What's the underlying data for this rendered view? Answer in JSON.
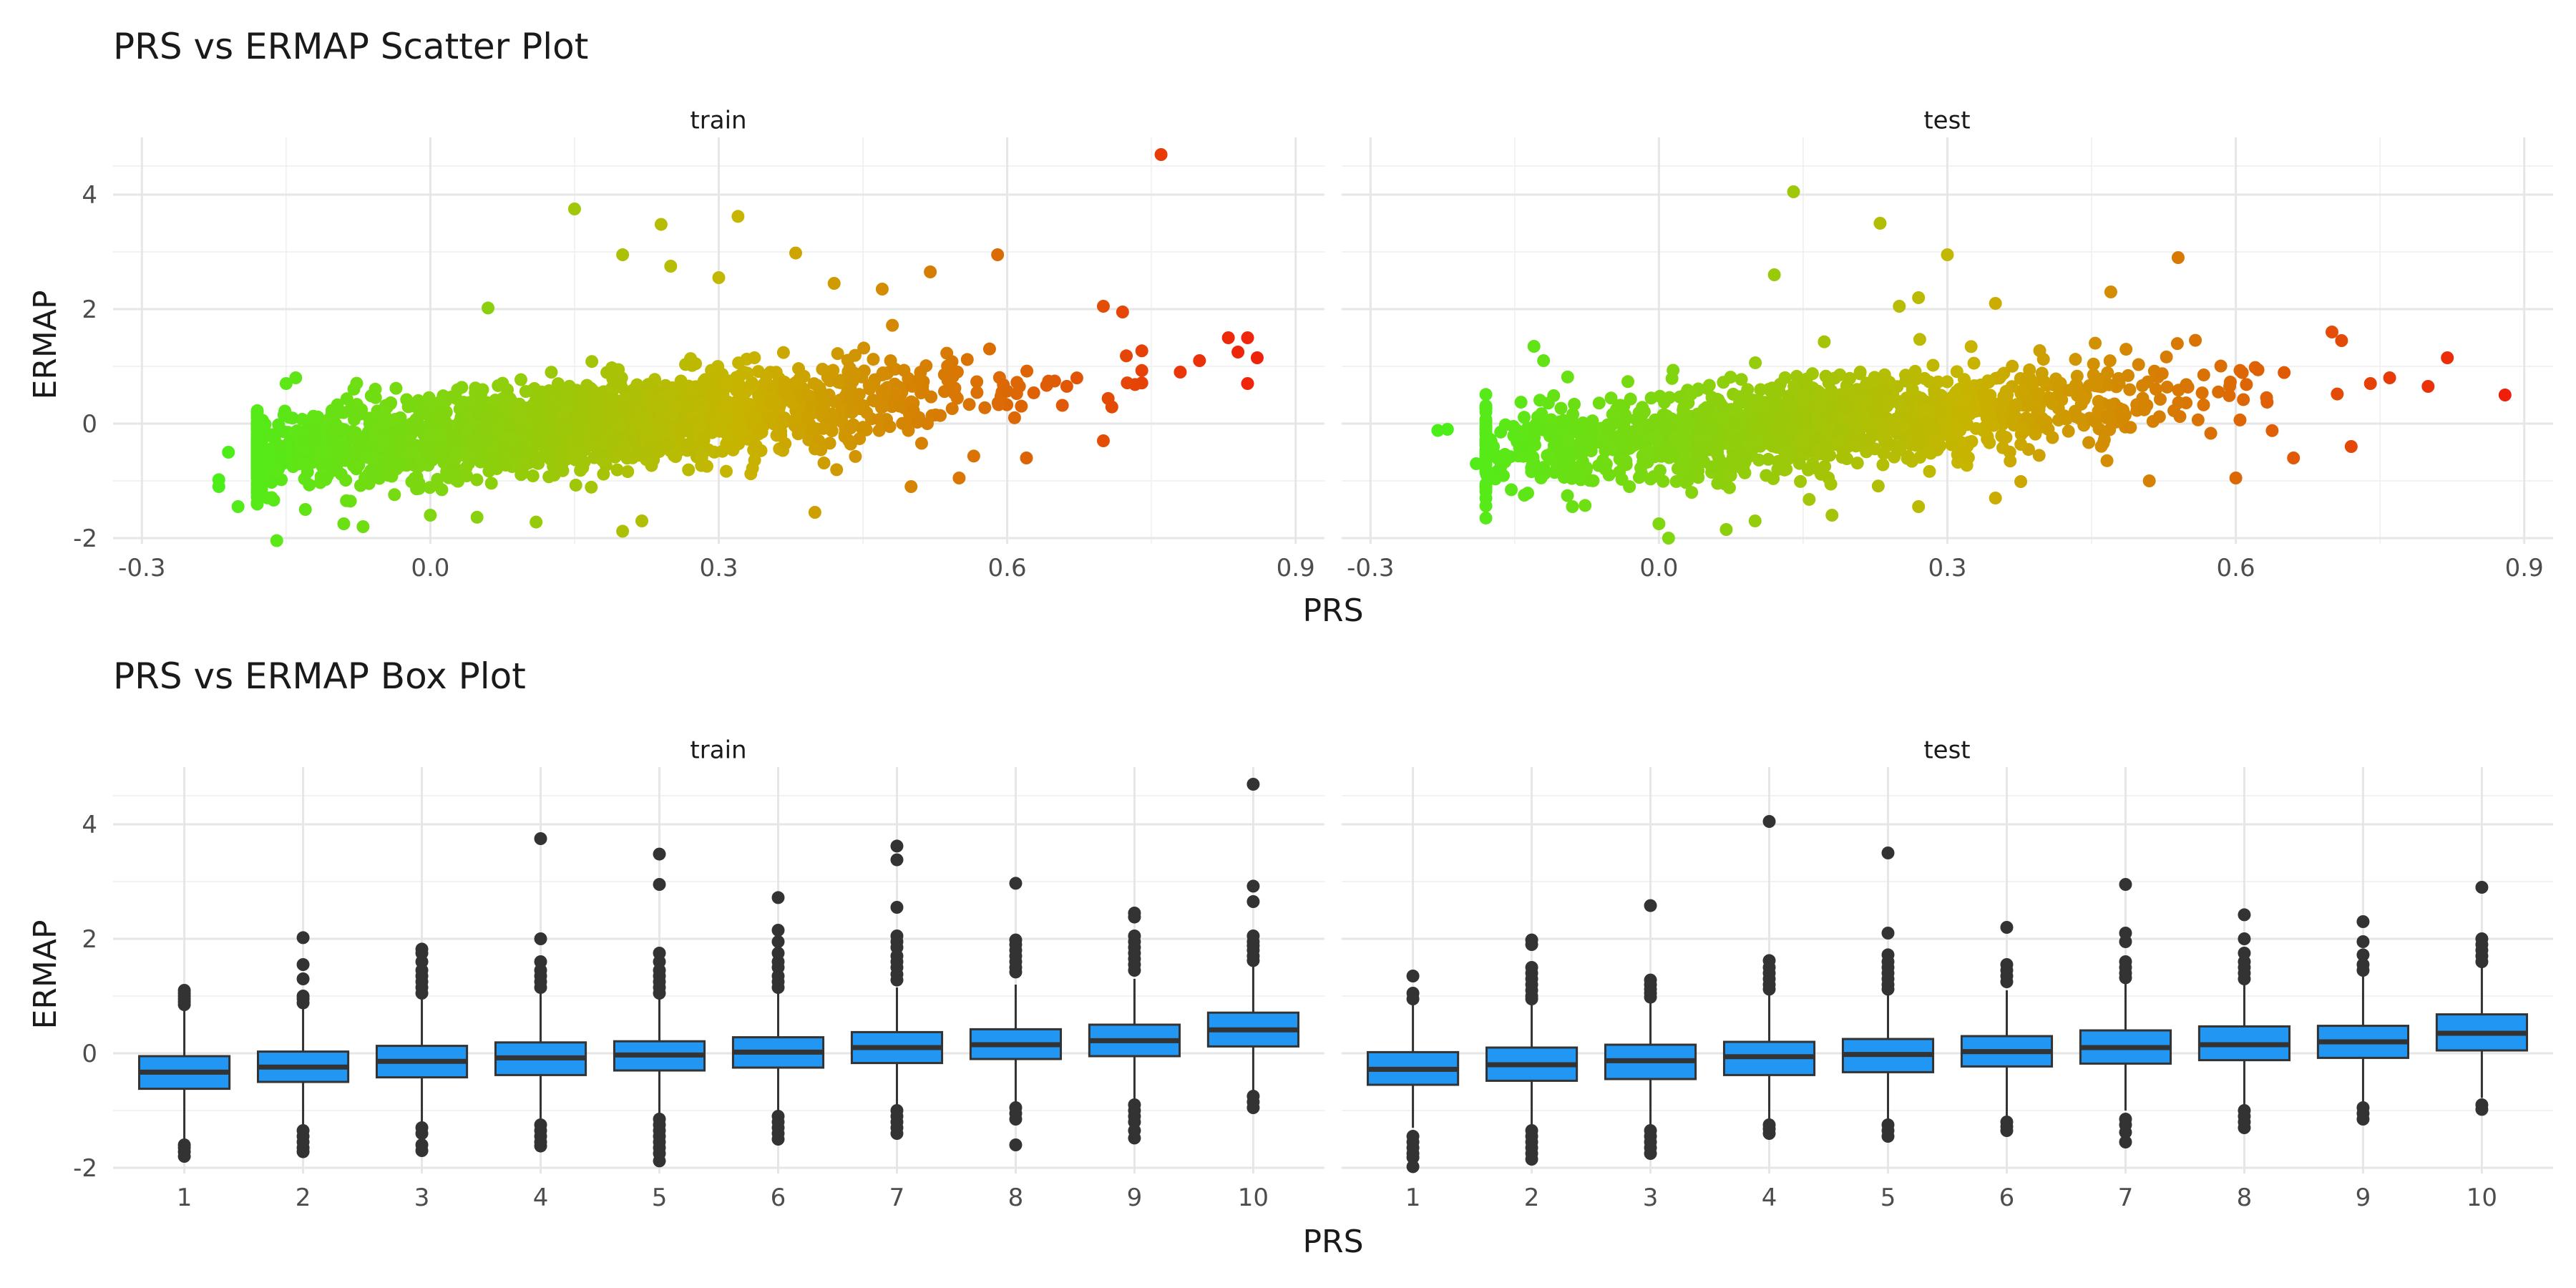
{
  "chart_data": [
    {
      "type": "scatter",
      "title": "PRS vs ERMAP Scatter Plot",
      "xlabel": "PRS",
      "ylabel": "ERMAP",
      "facets": [
        "train",
        "test"
      ],
      "xlim": [
        -0.33,
        0.93
      ],
      "ylim": [
        -2.1,
        5.0
      ],
      "xticks": [
        -0.3,
        0.0,
        0.3,
        0.6,
        0.9
      ],
      "xtick_labels": [
        "-0.3",
        "0.0",
        "0.3",
        "0.6",
        "0.9"
      ],
      "yticks": [
        -2,
        0,
        2,
        4
      ],
      "ytick_labels": [
        "-2",
        "0",
        "2",
        "4"
      ],
      "color_scale": {
        "low": "#4cee1a",
        "mid": "#c8b400",
        "high": "#f01e0a"
      },
      "grid": true,
      "legend": "none",
      "series": [
        {
          "facet": "train",
          "trend": {
            "slope": 1.5,
            "intercept": -0.37,
            "noise_sd": 0.38,
            "n": 2000
          },
          "points": [
            [
              0.76,
              4.7
            ],
            [
              0.15,
              3.75
            ],
            [
              0.32,
              3.62
            ],
            [
              0.24,
              3.48
            ],
            [
              0.38,
              2.98
            ],
            [
              0.2,
              2.95
            ],
            [
              0.59,
              2.95
            ],
            [
              0.25,
              2.75
            ],
            [
              0.52,
              2.65
            ],
            [
              0.3,
              2.55
            ],
            [
              0.42,
              2.45
            ],
            [
              0.47,
              2.35
            ],
            [
              0.06,
              2.02
            ],
            [
              0.7,
              2.05
            ],
            [
              0.72,
              1.95
            ],
            [
              0.83,
              1.5
            ],
            [
              0.85,
              1.5
            ],
            [
              0.86,
              1.15
            ],
            [
              0.84,
              1.25
            ],
            [
              0.8,
              1.1
            ],
            [
              0.85,
              0.7
            ],
            [
              0.78,
              0.9
            ],
            [
              -0.21,
              -0.5
            ],
            [
              -0.22,
              -0.98
            ],
            [
              -0.22,
              -1.1
            ],
            [
              -0.2,
              -1.45
            ],
            [
              -0.13,
              -1.5
            ],
            [
              -0.15,
              0.7
            ],
            [
              -0.14,
              0.8
            ],
            [
              -0.09,
              -1.75
            ],
            [
              -0.07,
              -1.8
            ],
            [
              0.11,
              -1.72
            ],
            [
              0.2,
              -1.88
            ],
            [
              0.22,
              -1.7
            ],
            [
              0.4,
              -1.55
            ],
            [
              0.5,
              -1.1
            ],
            [
              0.55,
              -0.95
            ],
            [
              0.62,
              -0.6
            ],
            [
              0.7,
              -0.3
            ],
            [
              0.0,
              -1.6
            ]
          ]
        },
        {
          "facet": "test",
          "trend": {
            "slope": 1.5,
            "intercept": -0.37,
            "noise_sd": 0.38,
            "n": 1500
          },
          "points": [
            [
              0.14,
              4.05
            ],
            [
              0.23,
              3.5
            ],
            [
              0.3,
              2.95
            ],
            [
              0.54,
              2.9
            ],
            [
              0.12,
              2.6
            ],
            [
              0.47,
              2.3
            ],
            [
              0.27,
              2.2
            ],
            [
              0.35,
              2.1
            ],
            [
              0.25,
              2.05
            ],
            [
              0.82,
              1.15
            ],
            [
              0.88,
              0.5
            ],
            [
              0.76,
              0.8
            ],
            [
              0.74,
              0.7
            ],
            [
              0.8,
              0.65
            ],
            [
              0.7,
              1.6
            ],
            [
              0.71,
              1.45
            ],
            [
              -0.22,
              -0.1
            ],
            [
              -0.23,
              -0.12
            ],
            [
              -0.19,
              -0.7
            ],
            [
              -0.17,
              -0.55
            ],
            [
              -0.13,
              1.35
            ],
            [
              -0.12,
              1.1
            ],
            [
              -0.14,
              -1.25
            ],
            [
              -0.09,
              -1.45
            ],
            [
              0.0,
              -1.75
            ],
            [
              0.01,
              -2.0
            ],
            [
              0.07,
              -1.85
            ],
            [
              0.1,
              -1.7
            ],
            [
              0.18,
              -1.6
            ],
            [
              0.27,
              -1.45
            ],
            [
              0.35,
              -1.3
            ],
            [
              0.51,
              -1.0
            ],
            [
              0.6,
              -0.95
            ],
            [
              0.66,
              -0.6
            ],
            [
              0.72,
              -0.4
            ]
          ]
        }
      ]
    },
    {
      "type": "box",
      "title": "PRS vs ERMAP Box Plot",
      "xlabel": "PRS",
      "ylabel": "ERMAP",
      "facets": [
        "train",
        "test"
      ],
      "categories": [
        "1",
        "2",
        "3",
        "4",
        "5",
        "6",
        "7",
        "8",
        "9",
        "10"
      ],
      "ylim": [
        -2.1,
        5.0
      ],
      "yticks": [
        -2,
        0,
        2,
        4
      ],
      "ytick_labels": [
        "-2",
        "0",
        "2",
        "4"
      ],
      "fill": "#2196f3",
      "grid": true,
      "legend": "none",
      "series": [
        {
          "facet": "train",
          "boxes": [
            {
              "q1": -0.62,
              "median": -0.33,
              "q3": -0.05,
              "lower": -1.5,
              "upper": 0.78,
              "outliers": [
                1.1,
                1.05,
                1.0,
                0.95,
                0.9,
                0.85,
                -1.6,
                -1.65,
                -1.72,
                -1.8
              ]
            },
            {
              "q1": -0.5,
              "median": -0.24,
              "q3": 0.03,
              "lower": -1.25,
              "upper": 0.82,
              "outliers": [
                2.02,
                1.55,
                1.3,
                1.0,
                0.95,
                0.88,
                -1.35,
                -1.45,
                -1.55,
                -1.65,
                -1.72
              ]
            },
            {
              "q1": -0.42,
              "median": -0.14,
              "q3": 0.13,
              "lower": -1.2,
              "upper": 0.95,
              "outliers": [
                1.82,
                1.75,
                1.6,
                1.45,
                1.35,
                1.25,
                1.15,
                1.05,
                -1.3,
                -1.4,
                -1.6,
                -1.7
              ]
            },
            {
              "q1": -0.38,
              "median": -0.08,
              "q3": 0.19,
              "lower": -1.2,
              "upper": 1.05,
              "outliers": [
                3.75,
                2.0,
                1.6,
                1.45,
                1.35,
                1.25,
                1.15,
                -1.25,
                -1.35,
                -1.45,
                -1.55,
                -1.62
              ]
            },
            {
              "q1": -0.3,
              "median": -0.03,
              "q3": 0.21,
              "lower": -1.05,
              "upper": 0.95,
              "outliers": [
                3.48,
                2.95,
                1.75,
                1.6,
                1.45,
                1.35,
                1.25,
                1.15,
                1.05,
                -1.15,
                -1.25,
                -1.35,
                -1.45,
                -1.55,
                -1.65,
                -1.75,
                -1.88
              ]
            },
            {
              "q1": -0.25,
              "median": 0.02,
              "q3": 0.28,
              "lower": -1.0,
              "upper": 1.05,
              "outliers": [
                2.72,
                2.15,
                1.95,
                1.75,
                1.6,
                1.5,
                1.35,
                1.25,
                1.15,
                -1.1,
                -1.2,
                -1.3,
                -1.4,
                -1.5
              ]
            },
            {
              "q1": -0.17,
              "median": 0.1,
              "q3": 0.37,
              "lower": -0.95,
              "upper": 1.15,
              "outliers": [
                3.62,
                3.38,
                2.55,
                2.05,
                1.95,
                1.85,
                1.7,
                1.6,
                1.5,
                1.38,
                1.28,
                -1.0,
                -1.1,
                -1.2,
                -1.3,
                -1.4
              ]
            },
            {
              "q1": -0.1,
              "median": 0.15,
              "q3": 0.42,
              "lower": -0.85,
              "upper": 1.2,
              "outliers": [
                2.97,
                1.98,
                1.9,
                1.8,
                1.7,
                1.6,
                1.5,
                1.42,
                -0.95,
                -1.05,
                -1.15,
                -1.6
              ]
            },
            {
              "q1": -0.05,
              "median": 0.22,
              "q3": 0.5,
              "lower": -0.85,
              "upper": 1.3,
              "outliers": [
                2.45,
                2.38,
                2.05,
                1.95,
                1.85,
                1.75,
                1.65,
                1.55,
                1.45,
                -0.9,
                -1.0,
                -1.1,
                -1.2,
                -1.35,
                -1.48
              ]
            },
            {
              "q1": 0.12,
              "median": 0.41,
              "q3": 0.71,
              "lower": -0.65,
              "upper": 1.55,
              "outliers": [
                4.7,
                2.92,
                2.65,
                2.05,
                1.95,
                1.88,
                1.8,
                1.7,
                1.62,
                -0.75,
                -0.85,
                -0.95
              ]
            }
          ]
        },
        {
          "facet": "test",
          "boxes": [
            {
              "q1": -0.55,
              "median": -0.28,
              "q3": 0.02,
              "lower": -1.3,
              "upper": 0.85,
              "outliers": [
                1.35,
                1.05,
                0.95,
                -1.45,
                -1.55,
                -1.65,
                -1.75,
                -1.82,
                -1.98
              ]
            },
            {
              "q1": -0.48,
              "median": -0.2,
              "q3": 0.1,
              "lower": -1.25,
              "upper": 0.85,
              "outliers": [
                1.98,
                1.9,
                1.5,
                1.4,
                1.3,
                1.2,
                1.1,
                1.0,
                0.95,
                -1.35,
                -1.45,
                -1.55,
                -1.65,
                -1.75,
                -1.85
              ]
            },
            {
              "q1": -0.45,
              "median": -0.13,
              "q3": 0.15,
              "lower": -1.25,
              "upper": 0.95,
              "outliers": [
                2.58,
                1.28,
                1.2,
                1.12,
                1.05,
                0.98,
                -1.35,
                -1.45,
                -1.55,
                -1.65,
                -1.75
              ]
            },
            {
              "q1": -0.38,
              "median": -0.06,
              "q3": 0.2,
              "lower": -1.2,
              "upper": 1.05,
              "outliers": [
                4.05,
                1.62,
                1.5,
                1.4,
                1.3,
                1.2,
                1.12,
                -1.25,
                -1.32,
                -1.4
              ]
            },
            {
              "q1": -0.33,
              "median": -0.02,
              "q3": 0.25,
              "lower": -1.15,
              "upper": 1.05,
              "outliers": [
                3.5,
                2.1,
                1.72,
                1.6,
                1.5,
                1.4,
                1.3,
                1.2,
                1.12,
                -1.25,
                -1.35,
                -1.45
              ]
            },
            {
              "q1": -0.23,
              "median": 0.03,
              "q3": 0.3,
              "lower": -1.1,
              "upper": 1.1,
              "outliers": [
                2.2,
                1.55,
                1.45,
                1.35,
                1.25,
                -1.2,
                -1.28,
                -1.35
              ]
            },
            {
              "q1": -0.18,
              "median": 0.1,
              "q3": 0.4,
              "lower": -1.0,
              "upper": 1.25,
              "outliers": [
                2.95,
                2.1,
                1.95,
                1.6,
                1.5,
                1.4,
                1.32,
                -1.15,
                -1.25,
                -1.38,
                -1.55
              ]
            },
            {
              "q1": -0.12,
              "median": 0.15,
              "q3": 0.47,
              "lower": -0.95,
              "upper": 1.25,
              "outliers": [
                2.42,
                2.0,
                1.75,
                1.6,
                1.5,
                1.4,
                1.3,
                -1.0,
                -1.1,
                -1.2,
                -1.3
              ]
            },
            {
              "q1": -0.08,
              "median": 0.2,
              "q3": 0.48,
              "lower": -0.9,
              "upper": 1.35,
              "outliers": [
                2.3,
                1.95,
                1.72,
                1.55,
                1.45,
                -0.95,
                -1.05,
                -1.15
              ]
            },
            {
              "q1": 0.05,
              "median": 0.35,
              "q3": 0.68,
              "lower": -0.78,
              "upper": 1.55,
              "outliers": [
                2.9,
                2.0,
                1.9,
                1.8,
                1.7,
                1.6,
                -0.9,
                -0.98
              ]
            }
          ]
        }
      ]
    }
  ]
}
